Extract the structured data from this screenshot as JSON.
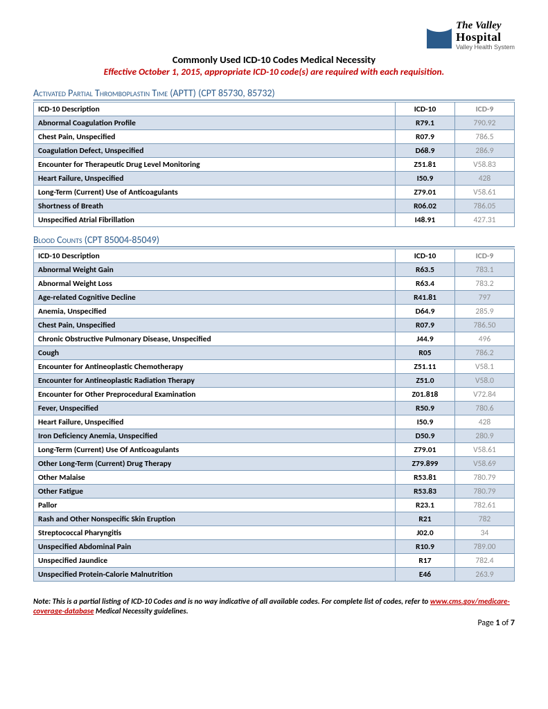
{
  "logo": {
    "line1": "The Valley",
    "line2": "Hospital",
    "line3": "Valley Health System"
  },
  "header": {
    "title": "Commonly Used ICD-10 Codes Medical Necessity",
    "subtitle": "Effective October 1, 2015, appropriate ICD-10 code(s) are required with each requisition."
  },
  "colors": {
    "accent": "#2a5a8a",
    "alert": "#c00000",
    "row_shade": "#d5dfec",
    "border": "#7a9ab8",
    "muted": "#888888"
  },
  "columns": {
    "desc": "ICD-10 Description",
    "c10": "ICD-10",
    "c9": "ICD-9"
  },
  "sections": [
    {
      "heading": "Activated Partial Thromboplastin Time (APTT) (CPT 85730, 85732)",
      "rows": [
        {
          "desc": "Abnormal Coagulation Profile",
          "c10": "R79.1",
          "c9": "790.92",
          "shade": true
        },
        {
          "desc": "Chest Pain, Unspecified",
          "c10": "R07.9",
          "c9": "786.5",
          "shade": false
        },
        {
          "desc": "Coagulation Defect, Unspecified",
          "c10": "D68.9",
          "c9": "286.9",
          "shade": true
        },
        {
          "desc": "Encounter for Therapeutic Drug Level Monitoring",
          "c10": "Z51.81",
          "c9": "V58.83",
          "shade": false
        },
        {
          "desc": "Heart Failure, Unspecified",
          "c10": "I50.9",
          "c9": "428",
          "shade": true
        },
        {
          "desc": "Long-Term (Current) Use of Anticoagulants",
          "c10": "Z79.01",
          "c9": "V58.61",
          "shade": false
        },
        {
          "desc": "Shortness of Breath",
          "c10": "R06.02",
          "c9": "786.05",
          "shade": true
        },
        {
          "desc": "Unspecified Atrial Fibrillation",
          "c10": "I48.91",
          "c9": "427.31",
          "shade": false
        }
      ]
    },
    {
      "heading": "Blood Counts (CPT 85004-85049)",
      "rows": [
        {
          "desc": "Abnormal Weight Gain",
          "c10": "R63.5",
          "c9": "783.1",
          "shade": true
        },
        {
          "desc": "Abnormal Weight Loss",
          "c10": "R63.4",
          "c9": "783.2",
          "shade": false
        },
        {
          "desc": "Age-related Cognitive Decline",
          "c10": "R41.81",
          "c9": "797",
          "shade": true
        },
        {
          "desc": "Anemia, Unspecified",
          "c10": "D64.9",
          "c9": "285.9",
          "shade": false
        },
        {
          "desc": "Chest Pain, Unspecified",
          "c10": "R07.9",
          "c9": "786.50",
          "shade": true
        },
        {
          "desc": "Chronic Obstructive Pulmonary Disease, Unspecified",
          "c10": "J44.9",
          "c9": "496",
          "shade": false
        },
        {
          "desc": "Cough",
          "c10": "R05",
          "c9": "786.2",
          "shade": true
        },
        {
          "desc": "Encounter for Antineoplastic Chemotherapy",
          "c10": "Z51.11",
          "c9": "V58.1",
          "shade": false
        },
        {
          "desc": "Encounter for Antineoplastic Radiation Therapy",
          "c10": "Z51.0",
          "c9": "V58.0",
          "shade": true
        },
        {
          "desc": "Encounter for Other Preprocedural Examination",
          "c10": "Z01.818",
          "c9": "V72.84",
          "shade": false
        },
        {
          "desc": "Fever, Unspecified",
          "c10": "R50.9",
          "c9": "780.6",
          "shade": true
        },
        {
          "desc": "Heart Failure, Unspecified",
          "c10": "I50.9",
          "c9": "428",
          "shade": false
        },
        {
          "desc": "Iron Deficiency Anemia, Unspecified",
          "c10": "D50.9",
          "c9": "280.9",
          "shade": true
        },
        {
          "desc": "Long-Term (Current) Use Of Anticoagulants",
          "c10": "Z79.01",
          "c9": "V58.61",
          "shade": false
        },
        {
          "desc": "Other Long-Term (Current) Drug Therapy",
          "c10": "Z79.899",
          "c9": "V58.69",
          "shade": true
        },
        {
          "desc": "Other Malaise",
          "c10": "R53.81",
          "c9": "780.79",
          "shade": false
        },
        {
          "desc": "Other Fatigue",
          "c10": "R53.83",
          "c9": "780.79",
          "shade": true
        },
        {
          "desc": "Pallor",
          "c10": "R23.1",
          "c9": "782.61",
          "shade": false
        },
        {
          "desc": "Rash and Other Nonspecific Skin Eruption",
          "c10": "R21",
          "c9": "782",
          "shade": true
        },
        {
          "desc": "Streptococcal Pharyngitis",
          "c10": "J02.0",
          "c9": "34",
          "shade": false
        },
        {
          "desc": "Unspecified Abdominal Pain",
          "c10": "R10.9",
          "c9": "789.00",
          "shade": true
        },
        {
          "desc": "Unspecified  Jaundice",
          "c10": "R17",
          "c9": "782.4",
          "shade": false
        },
        {
          "desc": "Unspecified Protein-Calorie Malnutrition",
          "c10": "E46",
          "c9": "263.9",
          "shade": true
        }
      ]
    }
  ],
  "footnote": {
    "pre": "Note: This is a partial listing of ICD-10 Codes and is no way indicative of all available codes. For complete list of codes, refer to ",
    "link_text": "www.cms.gov/medicare-coverage-database",
    "post": " Medical Necessity guidelines."
  },
  "page": {
    "label_pre": "Page ",
    "current": "1",
    "label_mid": " of ",
    "total": "7"
  }
}
